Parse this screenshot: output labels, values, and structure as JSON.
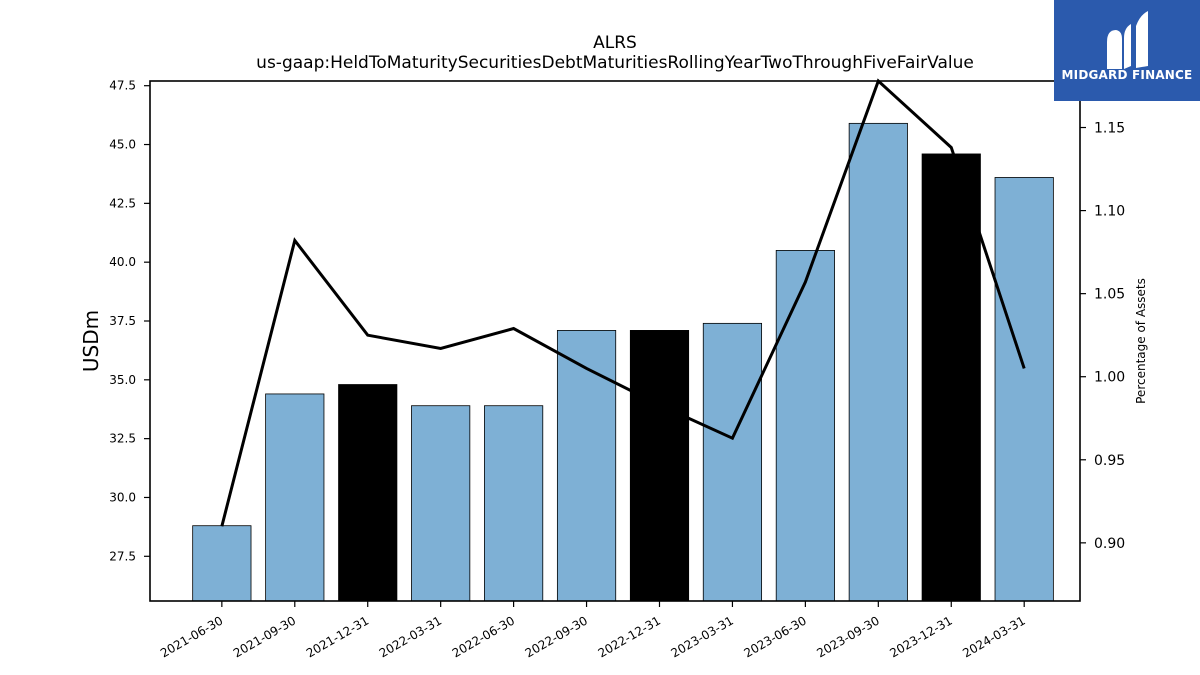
{
  "chart_data": {
    "type": "bar",
    "title": "ALRS",
    "subtitle": "us-gaap:HeldToMaturitySecuritiesDebtMaturitiesRollingYearTwoThroughFiveFairValue",
    "ylabel": "USDm",
    "y2label": "Percentage of Assets",
    "categories": [
      "2021-06-30",
      "2021-09-30",
      "2021-12-31",
      "2022-03-31",
      "2022-06-30",
      "2022-09-30",
      "2022-12-31",
      "2023-03-31",
      "2023-06-30",
      "2023-09-30",
      "2023-12-31",
      "2024-03-31"
    ],
    "series": [
      {
        "type": "bar",
        "axis": "left",
        "values": [
          28.8,
          34.4,
          34.8,
          33.9,
          33.9,
          37.1,
          37.1,
          37.4,
          40.5,
          45.9,
          44.6,
          43.6
        ],
        "colors": [
          "#7eb0d5",
          "#7eb0d5",
          "#000000",
          "#7eb0d5",
          "#7eb0d5",
          "#7eb0d5",
          "#000000",
          "#7eb0d5",
          "#7eb0d5",
          "#7eb0d5",
          "#000000",
          "#7eb0d5"
        ]
      },
      {
        "type": "line",
        "axis": "right",
        "color": "#000000",
        "values": [
          0.91,
          1.082,
          1.025,
          1.017,
          1.029,
          1.005,
          0.983,
          0.963,
          1.057,
          1.178,
          1.138,
          1.005
        ]
      }
    ],
    "ylim": [
      25.6,
      47.7
    ],
    "y2lim": [
      0.865,
      1.178
    ],
    "yticks": [
      "27.5",
      "30.0",
      "32.5",
      "35.0",
      "37.5",
      "40.0",
      "42.5",
      "45.0",
      "47.5"
    ],
    "y2ticks": [
      "0.90",
      "0.95",
      "1.00",
      "1.05",
      "1.10",
      "1.15"
    ],
    "grid": false
  },
  "logo": {
    "text": "MIDGARD FINANCE",
    "icon": "midgard-m-logo-icon",
    "background": "#2b5aad"
  }
}
